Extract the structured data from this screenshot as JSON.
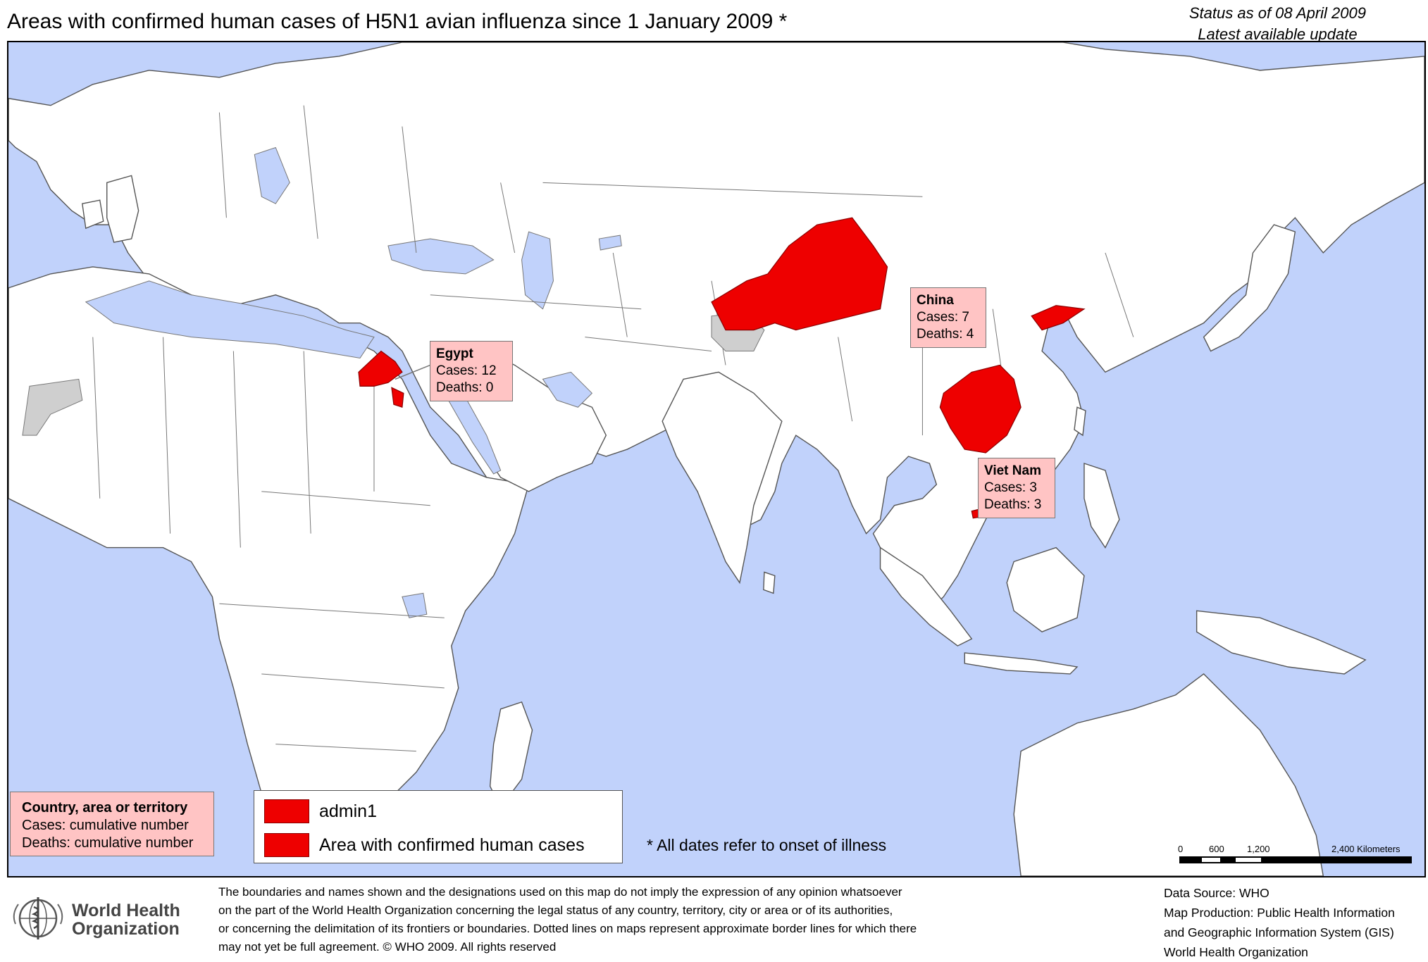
{
  "title": "Areas with confirmed human cases of H5N1 avian influenza since 1 January 2009 *",
  "status": {
    "line1": "Status as of 08 April 2009",
    "line2": "Latest available update"
  },
  "labels": {
    "egypt": {
      "name": "Egypt",
      "cases": "Cases: 12",
      "deaths": "Deaths: 0"
    },
    "china": {
      "name": "China",
      "cases": "Cases: 7",
      "deaths": "Deaths: 4"
    },
    "vietnam": {
      "name": "Viet Nam",
      "cases": "Cases: 3",
      "deaths": "Deaths: 3"
    }
  },
  "legend": {
    "country_box": {
      "heading": "Country, area or territory",
      "cases": "Cases: cumulative number",
      "deaths": "Deaths: cumulative number"
    },
    "items": [
      {
        "label": "admin1",
        "color": "#ee0000"
      },
      {
        "label": "Area with confirmed human cases",
        "color": "#ee0000"
      }
    ]
  },
  "note": "*  All dates refer to onset of illness",
  "scale_bar": {
    "ticks": [
      "0",
      "600",
      "1,200",
      "2,400 Kilometers"
    ]
  },
  "disclaimer": [
    "The boundaries and names shown and the designations used on this map do not imply the expression of any opinion whatsoever",
    "on the part of the World Health Organization concerning the legal status of any country, territory, city or area or of its authorities,",
    "or concerning the delimitation of its frontiers or boundaries.  Dotted lines on maps represent approximate border lines for which there",
    "may not yet be full agreement. © WHO 2009. All rights reserved"
  ],
  "credits": {
    "source": "Data Source: WHO",
    "production1": "Map Production: Public Health Information",
    "production2": "and Geographic Information System (GIS)",
    "org": "World Health Organization"
  },
  "who": {
    "line1": "World Health",
    "line2": "Organization"
  },
  "colors": {
    "water": "#c1d2fb",
    "land": "#ffffff",
    "affected": "#ee0000",
    "label_box": "#ffc4c4",
    "disputed": "#cfcfcf"
  }
}
